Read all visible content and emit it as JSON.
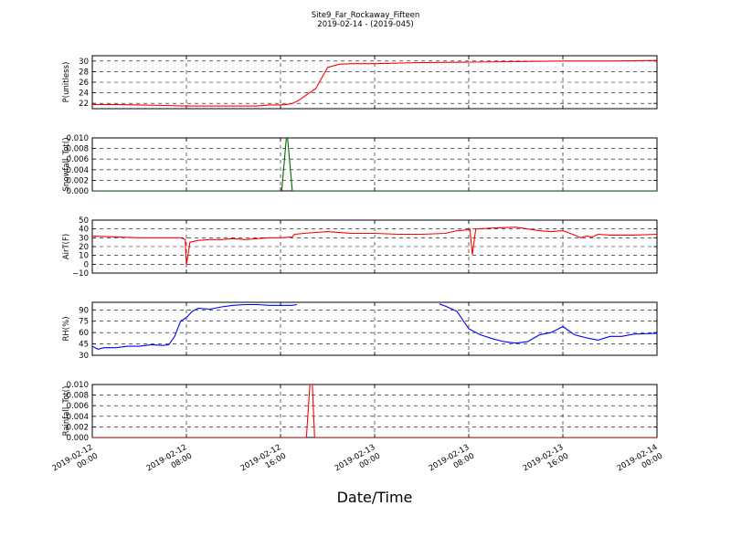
{
  "figure": {
    "title": "Site9_Far_Rockaway_Fifteen",
    "subtitle": "2019-02-14 - (2019-045)",
    "xlabel": "Date/Time"
  },
  "chart_data": [
    {
      "type": "line",
      "ylabel": "P(unitless)",
      "ylim": [
        21,
        31
      ],
      "yticks": [
        "22",
        "24",
        "26",
        "28",
        "30"
      ],
      "yticks_values": [
        22,
        24,
        26,
        28,
        30
      ],
      "color": "#ff0000",
      "grid": true,
      "x": [
        0,
        2,
        4,
        6,
        8,
        10,
        12,
        14,
        15,
        16,
        16.5,
        17,
        17.5,
        18,
        19,
        20,
        21,
        22,
        24,
        28,
        32,
        36,
        40,
        44,
        48
      ],
      "y": [
        21.8,
        21.8,
        21.7,
        21.6,
        21.5,
        21.5,
        21.5,
        21.5,
        21.7,
        21.7,
        21.8,
        22.0,
        22.5,
        23.3,
        24.8,
        28.8,
        29.4,
        29.5,
        29.5,
        29.7,
        29.8,
        29.9,
        30.0,
        30.0,
        30.1
      ]
    },
    {
      "type": "line",
      "ylabel": "Snowfall_Tot()",
      "ylim": [
        0,
        0.01
      ],
      "yticks": [
        "0.000",
        "0.002",
        "0.004",
        "0.006",
        "0.008",
        "0.010"
      ],
      "yticks_values": [
        0,
        0.002,
        0.004,
        0.006,
        0.008,
        0.01
      ],
      "color": "#006400",
      "grid": true,
      "x": [
        0,
        16.1,
        16.5,
        16.6,
        17.0,
        48
      ],
      "y": [
        0,
        0,
        0.01,
        0.01,
        0,
        0
      ]
    },
    {
      "type": "line",
      "ylabel": "AirT(F)",
      "ylim": [
        -10,
        50
      ],
      "yticks": [
        "−10",
        "0",
        "10",
        "20",
        "30",
        "40",
        "50"
      ],
      "yticks_values": [
        -10,
        0,
        10,
        20,
        30,
        40,
        50
      ],
      "color": "#ff0000",
      "grid": true,
      "x": [
        0,
        2,
        4,
        6,
        7.5,
        7.9,
        8.0,
        8.3,
        9,
        10,
        11,
        12,
        13,
        14,
        15,
        16,
        17,
        17.2,
        18,
        19,
        20,
        22,
        24,
        26,
        28,
        30,
        31,
        32,
        32.1,
        32.3,
        32.6,
        34,
        36,
        37,
        38,
        39,
        40,
        41,
        41.5,
        42,
        42.5,
        43,
        44,
        46,
        48
      ],
      "y": [
        32,
        31,
        30,
        30,
        30,
        28,
        -1,
        25,
        27,
        28,
        28,
        29,
        28,
        29,
        30,
        30,
        31,
        34,
        35,
        36,
        37,
        35,
        35,
        34,
        34,
        35,
        38,
        39,
        40,
        11,
        40,
        41,
        42,
        40,
        38,
        37,
        38,
        33,
        30,
        32,
        31,
        34,
        33,
        33,
        34
      ]
    },
    {
      "type": "line",
      "ylabel": "RH(%)",
      "ylim": [
        30,
        100
      ],
      "yticks": [
        "30",
        "45",
        "60",
        "75",
        "90"
      ],
      "yticks_values": [
        30,
        45,
        60,
        75,
        90
      ],
      "color": "#0000ff",
      "grid": true,
      "segments": [
        {
          "x": [
            0,
            0.5,
            1,
            2,
            3,
            4,
            5,
            6,
            6.5,
            7,
            7.5,
            8,
            8.5,
            9,
            10,
            11,
            12,
            13,
            14,
            15,
            16,
            17,
            17.4
          ],
          "y": [
            42,
            38,
            40,
            40,
            42,
            42,
            44,
            43,
            44,
            55,
            75,
            80,
            88,
            92,
            91,
            94,
            96,
            97,
            97,
            96,
            96,
            96,
            97
          ]
        },
        {
          "x": [
            29.5,
            30,
            31,
            32,
            33,
            34,
            35,
            36,
            37,
            38,
            39,
            40,
            41,
            42,
            43,
            44,
            45,
            46,
            48
          ],
          "y": [
            98,
            95,
            88,
            65,
            57,
            52,
            48,
            46,
            48,
            57,
            60,
            68,
            57,
            53,
            50,
            55,
            55,
            58,
            59
          ]
        }
      ]
    },
    {
      "type": "line",
      "ylabel": "Rainfall_Tot()",
      "ylim": [
        0,
        0.01
      ],
      "yticks": [
        "0.000",
        "0.002",
        "0.004",
        "0.006",
        "0.008",
        "0.010"
      ],
      "yticks_values": [
        0,
        0.002,
        0.004,
        0.006,
        0.008,
        0.01
      ],
      "color": "#ff0000",
      "grid": true,
      "x": [
        0,
        18.2,
        18.5,
        18.7,
        18.9,
        48
      ],
      "y": [
        0,
        0,
        0.01,
        0.01,
        0,
        0
      ]
    }
  ],
  "xaxis": {
    "xlim": [
      0,
      48
    ],
    "ticks": [
      {
        "value": 0,
        "line1": "2019-02-12",
        "line2": "00:00"
      },
      {
        "value": 8,
        "line1": "2019-02-12",
        "line2": "08:00"
      },
      {
        "value": 16,
        "line1": "2019-02-12",
        "line2": "16:00"
      },
      {
        "value": 24,
        "line1": "2019-02-13",
        "line2": "00:00"
      },
      {
        "value": 32,
        "line1": "2019-02-13",
        "line2": "08:00"
      },
      {
        "value": 40,
        "line1": "2019-02-13",
        "line2": "16:00"
      },
      {
        "value": 48,
        "line1": "2019-02-14",
        "line2": "00:00"
      }
    ]
  }
}
